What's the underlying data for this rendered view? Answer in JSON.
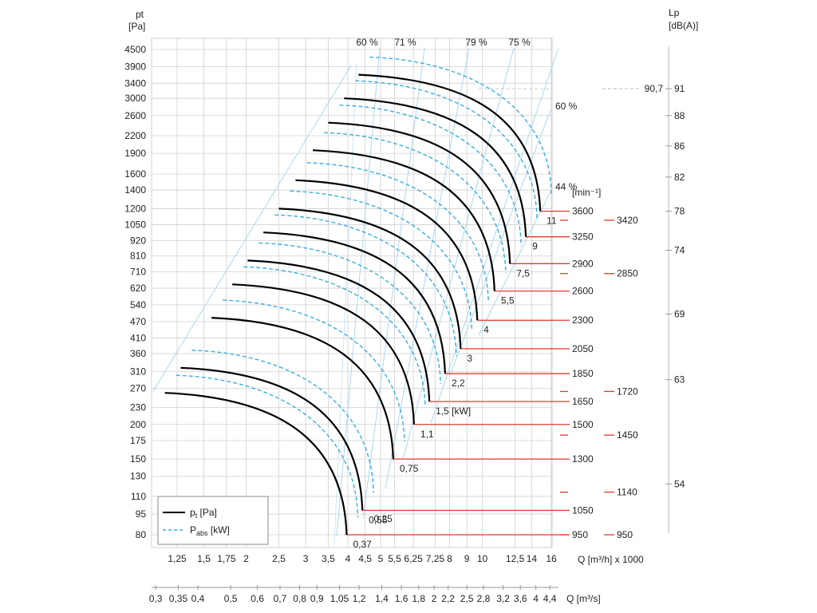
{
  "chart_data": {
    "type": "line",
    "y_axis": {
      "label": "pt",
      "unit": "[Pa]",
      "scale": "log",
      "ticks": [
        80,
        95,
        110,
        130,
        150,
        175,
        200,
        230,
        270,
        310,
        360,
        410,
        470,
        540,
        620,
        710,
        810,
        920,
        1050,
        1200,
        1400,
        1600,
        1900,
        2200,
        2600,
        3000,
        3400,
        3900,
        4500
      ]
    },
    "x_axis_primary": {
      "label": "Q [m³/h] x 1000",
      "scale": "log",
      "ticks": [
        "1,25",
        "1,5",
        "1,75",
        "2",
        "2,5",
        "3",
        "3,5",
        "4",
        "4,5",
        "5",
        "5,5",
        "6,25",
        "7,25",
        "8",
        "9",
        "10",
        "12,5",
        "14",
        "16"
      ]
    },
    "x_axis_secondary": {
      "label": "Q [m³/s]",
      "ticks": [
        "0,3",
        "0,35",
        "0,4",
        "0,5",
        "0,6",
        "0,7",
        "0,8",
        "0,9",
        "1,05",
        "1,2",
        "1,4",
        "1,6",
        "1,8",
        "2",
        "2,2",
        "2,5",
        "2,8",
        "3,2",
        "3,6",
        "4",
        "4,4"
      ]
    },
    "right_axis": {
      "label": "Lp",
      "unit": "[dB(A)]",
      "ticks": [
        {
          "value": "91",
          "pt": 3250
        },
        {
          "value": "88",
          "pt": 2600
        },
        {
          "value": "86",
          "pt": 2020
        },
        {
          "value": "82",
          "pt": 1560
        },
        {
          "value": "78",
          "pt": 1175
        },
        {
          "value": "74",
          "pt": 850
        },
        {
          "value": "69",
          "pt": 500
        },
        {
          "value": "63",
          "pt": 290
        },
        {
          "value": "54",
          "pt": 122
        }
      ],
      "marker": {
        "value": "90,7",
        "pt": 3250
      }
    },
    "speed_unit": "[min⁻¹]",
    "speeds": [
      3600,
      3250,
      2900,
      2600,
      2300,
      2050,
      1850,
      1650,
      1500,
      1300,
      1050,
      950
    ],
    "secondary_speeds": [
      {
        "value": "3420",
        "pt": 1090
      },
      {
        "value": "2850",
        "pt": 700
      },
      {
        "value": "1720",
        "pt": 263
      },
      {
        "value": "1450",
        "pt": 183
      },
      {
        "value": "1140",
        "pt": 114
      },
      {
        "value": "950",
        "pt": 80
      }
    ],
    "motor_power_labels": [
      "11",
      "9",
      "7,5",
      "5,5",
      "4",
      "3",
      "2,2",
      "1,5 [kW]",
      "1,1",
      "0,75",
      "0,55",
      "0,37",
      "0,25"
    ],
    "efficiency_labels_top": [
      "60 %",
      "71 %",
      "79 %",
      "75 %"
    ],
    "efficiency_labels_right": [
      "60 %",
      "44 %"
    ],
    "series": [
      {
        "name": "pt [Pa]",
        "style": "solid",
        "color": "#000000",
        "curves": [
          {
            "speed": 3600,
            "q_start": 4.3,
            "pt_max": 3650,
            "pt_end": 1175
          },
          {
            "speed": 3250,
            "q_start": 3.9,
            "pt_max": 3000,
            "pt_end": 950
          },
          {
            "speed": 2900,
            "q_start": 3.5,
            "pt_max": 2450,
            "pt_end": 760
          },
          {
            "speed": 2600,
            "q_start": 3.15,
            "pt_max": 1950,
            "pt_end": 605
          },
          {
            "speed": 2300,
            "q_start": 2.8,
            "pt_max": 1520,
            "pt_end": 475
          },
          {
            "speed": 2050,
            "q_start": 2.5,
            "pt_max": 1200,
            "pt_end": 375
          },
          {
            "speed": 1850,
            "q_start": 2.25,
            "pt_max": 985,
            "pt_end": 305
          },
          {
            "speed": 1650,
            "q_start": 2.02,
            "pt_max": 780,
            "pt_end": 242
          },
          {
            "speed": 1500,
            "q_start": 1.82,
            "pt_max": 640,
            "pt_end": 200
          },
          {
            "speed": 1300,
            "q_start": 1.58,
            "pt_max": 485,
            "pt_end": 150
          },
          {
            "speed": 1050,
            "q_start": 1.28,
            "pt_max": 320,
            "pt_end": 98
          },
          {
            "speed": 950,
            "q_start": 1.15,
            "pt_max": 260,
            "pt_end": 80
          }
        ]
      },
      {
        "name": "Pabs [kW]",
        "style": "dashed",
        "color": "#3aaee0"
      }
    ],
    "legend": {
      "position": "bottom-left",
      "items": [
        {
          "label": "pt [Pa]",
          "base": "p",
          "sub": "t",
          "rest": " [Pa]",
          "style": "solid",
          "color": "#000000"
        },
        {
          "label": "Pabs [kW]",
          "base": "P",
          "sub": "abs",
          "rest": " [kW]",
          "style": "dashed",
          "color": "#3aaee0"
        }
      ]
    },
    "grid": true,
    "colors": {
      "curve": "#000000",
      "power": "#3aaee0",
      "efficiency": "#a6d3ee",
      "grid": "#d0d0d0",
      "speed_line": "#e03a2e"
    }
  }
}
